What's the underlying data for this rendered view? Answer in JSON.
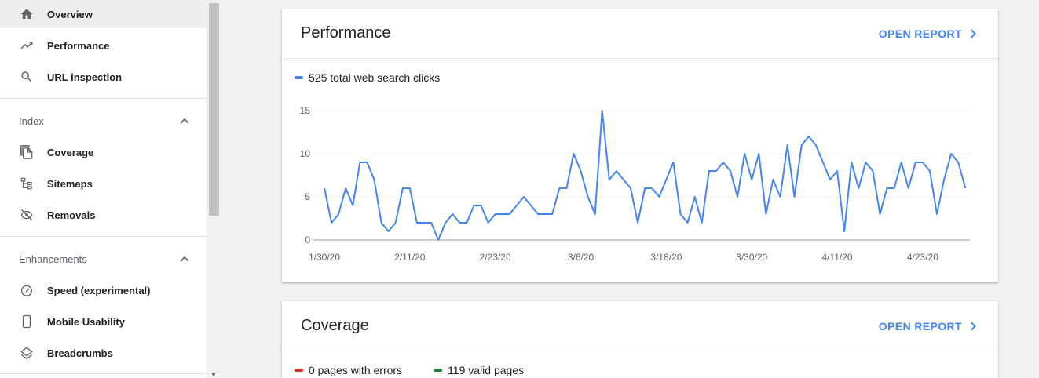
{
  "sidebar": {
    "items": [
      {
        "label": "Overview",
        "icon": "home-icon"
      },
      {
        "label": "Performance",
        "icon": "trending-up-icon"
      },
      {
        "label": "URL inspection",
        "icon": "search-icon"
      }
    ],
    "sections": [
      {
        "label": "Index",
        "items": [
          {
            "label": "Coverage",
            "icon": "file-copy-icon"
          },
          {
            "label": "Sitemaps",
            "icon": "sitemap-icon"
          },
          {
            "label": "Removals",
            "icon": "visibility-off-icon"
          }
        ]
      },
      {
        "label": "Enhancements",
        "items": [
          {
            "label": "Speed (experimental)",
            "icon": "speedometer-icon"
          },
          {
            "label": "Mobile Usability",
            "icon": "smartphone-icon"
          },
          {
            "label": "Breadcrumbs",
            "icon": "layers-icon"
          }
        ]
      }
    ]
  },
  "performance_card": {
    "title": "Performance",
    "open_report": "OPEN REPORT",
    "legend": "525 total web search clicks"
  },
  "coverage_card": {
    "title": "Coverage",
    "open_report": "OPEN REPORT",
    "legend_errors": "0 pages with errors",
    "legend_valid": "119 valid pages"
  },
  "colors": {
    "accent": "#4285f4",
    "error": "#d93025",
    "valid": "#188038"
  },
  "chart_data": {
    "type": "line",
    "title": "",
    "xlabel": "",
    "ylabel": "",
    "ylim": [
      0,
      15
    ],
    "yticks": [
      "0",
      "5",
      "10",
      "15"
    ],
    "x_ticks": [
      "1/30/20",
      "2/11/20",
      "2/23/20",
      "3/6/20",
      "3/18/20",
      "3/30/20",
      "4/11/20",
      "4/23/20"
    ],
    "x_start": "1/30/20",
    "grid": true,
    "legend_position": "top-left",
    "series": [
      {
        "name": "525 total web search clicks",
        "color": "#4285f4",
        "values": [
          6,
          2,
          3,
          6,
          4,
          9,
          9,
          7,
          2,
          1,
          2,
          6,
          6,
          2,
          2,
          2,
          0,
          2,
          3,
          2,
          2,
          4,
          4,
          2,
          3,
          3,
          3,
          4,
          5,
          4,
          3,
          3,
          3,
          6,
          6,
          10,
          8,
          5,
          3,
          15,
          7,
          8,
          7,
          6,
          2,
          6,
          6,
          5,
          7,
          9,
          3,
          2,
          5,
          2,
          8,
          8,
          9,
          8,
          5,
          10,
          7,
          10,
          3,
          7,
          5,
          11,
          5,
          11,
          12,
          11,
          9,
          7,
          8,
          1,
          9,
          6,
          9,
          8,
          3,
          6,
          6,
          9,
          6,
          9,
          9,
          8,
          3,
          7,
          10,
          9,
          6
        ]
      }
    ]
  }
}
